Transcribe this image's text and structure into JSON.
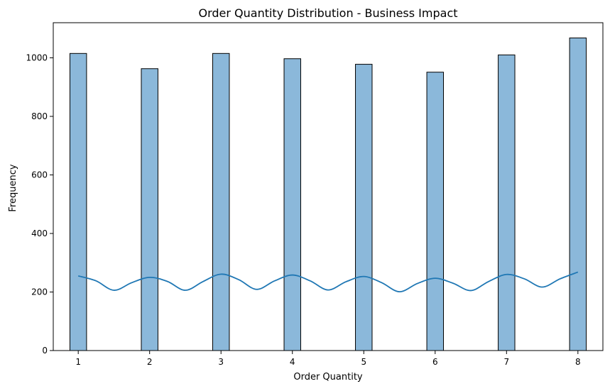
{
  "chart_data": {
    "type": "bar",
    "title": "Order Quantity Distribution - Business Impact",
    "xlabel": "Order Quantity",
    "ylabel": "Frequency",
    "xlim": [
      0.65,
      8.35
    ],
    "ylim": [
      0,
      1120
    ],
    "xticks": [
      1,
      2,
      3,
      4,
      5,
      6,
      7,
      8
    ],
    "yticks": [
      0,
      200,
      400,
      600,
      800,
      1000
    ],
    "bar_width": 0.2333,
    "bar_color": "#8bb8da",
    "bar_edge_color": "#000000",
    "kde_color": "#1f77b4",
    "categories": [
      1,
      2,
      3,
      4,
      5,
      6,
      7,
      8
    ],
    "values": [
      1015,
      963,
      1015,
      997,
      978,
      951,
      1010,
      1068
    ],
    "kde": {
      "x": [
        1,
        1.25,
        1.5,
        1.75,
        2,
        2.25,
        2.5,
        2.75,
        3,
        3.25,
        3.5,
        3.75,
        4,
        4.25,
        4.5,
        4.75,
        5,
        5.25,
        5.5,
        5.75,
        6,
        6.25,
        6.5,
        6.75,
        7,
        7.25,
        7.5,
        7.75,
        8
      ],
      "y": [
        255,
        238,
        206,
        232,
        250,
        236,
        206,
        236,
        261,
        242,
        209,
        238,
        258,
        238,
        207,
        235,
        253,
        232,
        201,
        229,
        247,
        230,
        205,
        236,
        260,
        245,
        217,
        245,
        268
      ]
    }
  }
}
